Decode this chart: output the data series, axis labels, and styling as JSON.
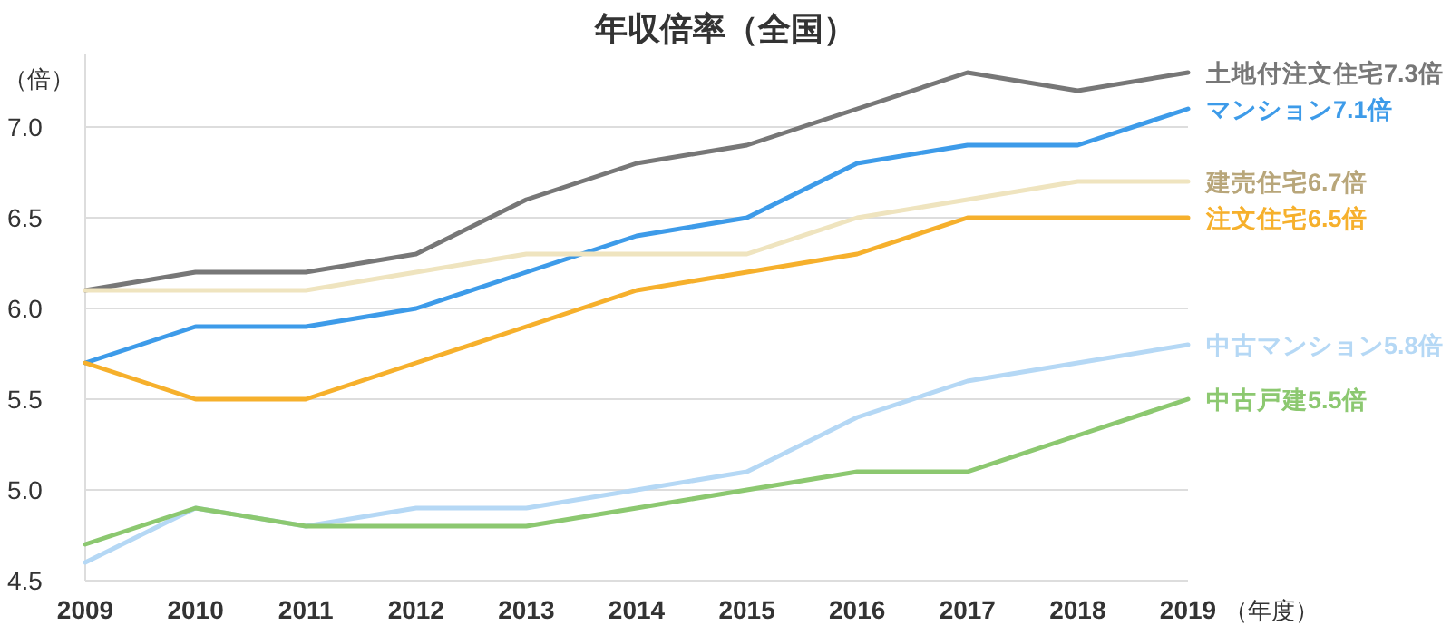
{
  "chart_data": {
    "type": "line",
    "title": "年収倍率（全国）",
    "ylabel": "（倍）",
    "xlabel": "（年度）",
    "x": [
      2009,
      2010,
      2011,
      2012,
      2013,
      2014,
      2015,
      2016,
      2017,
      2018,
      2019
    ],
    "xlim": [
      2009,
      2019
    ],
    "xticks": [
      2009,
      2010,
      2011,
      2012,
      2013,
      2014,
      2015,
      2016,
      2017,
      2018,
      2019
    ],
    "ylim": [
      4.5,
      7.4
    ],
    "yticks": [
      4.5,
      {
        "value": 5,
        "label": "5.0"
      },
      5.5,
      {
        "value": 6,
        "label": "6.0"
      },
      6.5,
      {
        "value": 7,
        "label": "7.0"
      }
    ],
    "grid": "y",
    "legend": false,
    "marker": "none",
    "line_style": "solid",
    "series": [
      {
        "name": "土地付注文住宅7.3倍",
        "color": "#777777",
        "values": [
          6.1,
          6.2,
          6.2,
          6.3,
          6.6,
          6.8,
          6.9,
          7.1,
          7.3,
          7.2,
          7.3
        ]
      },
      {
        "name": "マンション7.1倍",
        "color": "#3d9be9",
        "values": [
          5.7,
          5.9,
          5.9,
          6.0,
          6.2,
          6.4,
          6.5,
          6.8,
          6.9,
          6.9,
          7.1
        ]
      },
      {
        "name": "建売住宅6.7倍",
        "color": "#efe4bf",
        "values": [
          6.1,
          6.1,
          6.1,
          6.2,
          6.3,
          6.3,
          6.3,
          6.5,
          6.6,
          6.7,
          6.7
        ]
      },
      {
        "name": "注文住宅6.5倍",
        "color": "#f6b02c",
        "values": [
          5.7,
          5.5,
          5.5,
          5.7,
          5.9,
          6.1,
          6.2,
          6.3,
          6.5,
          6.5,
          6.5
        ]
      },
      {
        "name": "中古マンション5.8倍",
        "color": "#b5d8f5",
        "values": [
          4.6,
          4.9,
          4.8,
          4.9,
          4.9,
          5.0,
          5.1,
          5.4,
          5.6,
          5.7,
          5.8
        ]
      },
      {
        "name": "中古戸建5.5倍",
        "color": "#8cc870",
        "values": [
          4.7,
          4.9,
          4.8,
          4.8,
          4.8,
          4.9,
          5.0,
          5.1,
          5.1,
          5.3,
          5.5
        ]
      }
    ]
  }
}
